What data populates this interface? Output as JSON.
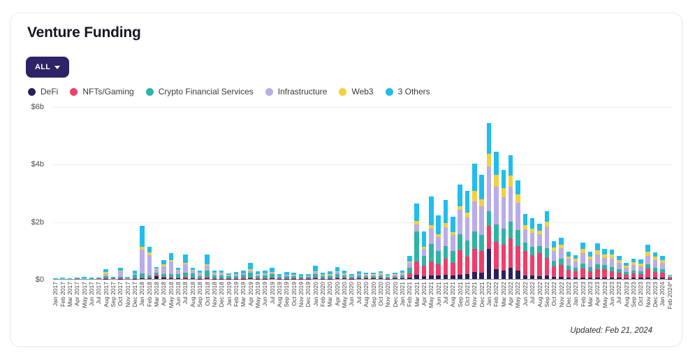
{
  "header": {
    "title": "Venture Funding"
  },
  "filter_button": {
    "label": "ALL"
  },
  "footer": {
    "updated": "Updated: Feb 21, 2024"
  },
  "chart_data": {
    "type": "bar",
    "stacked": true,
    "title": "Venture Funding",
    "unit": "USD billions",
    "ylim": [
      0,
      6
    ],
    "grid": "horizontal",
    "legend_position": "top",
    "y_ticks": [
      {
        "label": "$0",
        "value": 0
      },
      {
        "label": "$2b",
        "value": 2
      },
      {
        "label": "$4b",
        "value": 4
      },
      {
        "label": "$6b",
        "value": 6
      }
    ],
    "series": [
      {
        "name": "DeFi",
        "color": "#27215f"
      },
      {
        "name": "NFTs/Gaming",
        "color": "#ee3e6a"
      },
      {
        "name": "Crypto Financial Services",
        "color": "#2eb4a5"
      },
      {
        "name": "Infrastructure",
        "color": "#b9ace9"
      },
      {
        "name": "Web3",
        "color": "#f4d03d"
      },
      {
        "name": "3 Others",
        "color": "#1fbdf0"
      }
    ],
    "categories": [
      "Jan 2017",
      "Feb 2017",
      "Mar 2017",
      "Apr 2017",
      "May 2017",
      "Jun 2017",
      "Jul 2017",
      "Aug 2017",
      "Sep 2017",
      "Oct 2017",
      "Nov 2017",
      "Dec 2017",
      "Jan 2018",
      "Feb 2018",
      "Mar 2018",
      "Apr 2018",
      "May 2018",
      "Jun 2018",
      "Jul 2018",
      "Aug 2018",
      "Sep 2018",
      "Oct 2018",
      "Nov 2018",
      "Dec 2018",
      "Jan 2019",
      "Feb 2019",
      "Mar 2019",
      "Apr 2019",
      "May 2019",
      "Jun 2019",
      "Jul 2019",
      "Aug 2019",
      "Sep 2019",
      "Oct 2019",
      "Nov 2019",
      "Dec 2019",
      "Jan 2020",
      "Feb 2020",
      "Mar 2020",
      "Apr 2020",
      "May 2020",
      "Jun 2020",
      "Jul 2020",
      "Aug 2020",
      "Sep 2020",
      "Oct 2020",
      "Nov 2020",
      "Dec 2020",
      "Jan 2021",
      "Feb 2021",
      "Mar 2021",
      "Apr 2021",
      "May 2021",
      "Jun 2021",
      "Jul 2021",
      "Aug 2021",
      "Sep 2021",
      "Oct 2021",
      "Nov 2021",
      "Dec 2021",
      "Jan 2022",
      "Feb 2022",
      "Mar 2022",
      "Apr 2022",
      "May 2022",
      "Jun 2022",
      "Jul 2022",
      "Aug 2022",
      "Sep 2022",
      "Oct 2022",
      "Nov 2022",
      "Dec 2022",
      "Jan 2023",
      "Feb 2023",
      "Mar 2023",
      "Apr 2023",
      "May 2023",
      "Jun 2023",
      "Jul 2023",
      "Aug 2023",
      "Sep 2023",
      "Oct 2023",
      "Nov 2023",
      "Dec 2023",
      "Jan 2024",
      "Feb 2024*"
    ],
    "values_order": [
      "DeFi",
      "NFTs/Gaming",
      "Crypto Financial Services",
      "Infrastructure",
      "Web3",
      "3 Others"
    ],
    "values": [
      [
        0,
        0,
        0.01,
        0,
        0,
        0.02
      ],
      [
        0,
        0,
        0.01,
        0.01,
        0,
        0.03
      ],
      [
        0,
        0,
        0.01,
        0,
        0,
        0.02
      ],
      [
        0,
        0.01,
        0.01,
        0,
        0,
        0.02
      ],
      [
        0,
        0,
        0.01,
        0.01,
        0,
        0.06
      ],
      [
        0,
        0,
        0.03,
        0,
        0,
        0.01
      ],
      [
        0,
        0.02,
        0.01,
        0,
        0,
        0.01
      ],
      [
        0.01,
        0.02,
        0.08,
        0.06,
        0.07,
        0.09
      ],
      [
        0,
        0.02,
        0.02,
        0.01,
        0,
        0.02
      ],
      [
        0.01,
        0.01,
        0.06,
        0.19,
        0.02,
        0.09
      ],
      [
        0,
        0.01,
        0.02,
        0.01,
        0,
        0.04
      ],
      [
        0.01,
        0.01,
        0.12,
        0.05,
        0.01,
        0.1
      ],
      [
        0.02,
        0.03,
        0.15,
        0.82,
        0.11,
        0.72
      ],
      [
        0.02,
        0.03,
        0.06,
        0.72,
        0.09,
        0.2
      ],
      [
        0.1,
        0.04,
        0.09,
        0.1,
        0.03,
        0.06
      ],
      [
        0.05,
        0.03,
        0.1,
        0.27,
        0.05,
        0.15
      ],
      [
        0.02,
        0.05,
        0.1,
        0.43,
        0.05,
        0.25
      ],
      [
        0.02,
        0.03,
        0.12,
        0.13,
        0.02,
        0.08
      ],
      [
        0.03,
        0.04,
        0.15,
        0.28,
        0.05,
        0.3
      ],
      [
        0.02,
        0.03,
        0.15,
        0.1,
        0.02,
        0.08
      ],
      [
        0.01,
        0.02,
        0.08,
        0.09,
        0.02,
        0.08
      ],
      [
        0.03,
        0.04,
        0.22,
        0.18,
        0.03,
        0.35
      ],
      [
        0.01,
        0.02,
        0.09,
        0.08,
        0.02,
        0.08
      ],
      [
        0.01,
        0.02,
        0.1,
        0.07,
        0.02,
        0.08
      ],
      [
        0.01,
        0.02,
        0.06,
        0.04,
        0.01,
        0.06
      ],
      [
        0.01,
        0.02,
        0.08,
        0.05,
        0.01,
        0.08
      ],
      [
        0.01,
        0.03,
        0.1,
        0.05,
        0.01,
        0.1
      ],
      [
        0.02,
        0.03,
        0.17,
        0.08,
        0.03,
        0.22
      ],
      [
        0.01,
        0.02,
        0.08,
        0.04,
        0.01,
        0.1
      ],
      [
        0.01,
        0.02,
        0.1,
        0.05,
        0.02,
        0.1
      ],
      [
        0.02,
        0.03,
        0.11,
        0.06,
        0.02,
        0.14
      ],
      [
        0.01,
        0.01,
        0.05,
        0.03,
        0.01,
        0.05
      ],
      [
        0.01,
        0.02,
        0.07,
        0.04,
        0.01,
        0.09
      ],
      [
        0.01,
        0.02,
        0.07,
        0.03,
        0.01,
        0.08
      ],
      [
        0.01,
        0.01,
        0.05,
        0.03,
        0.01,
        0.05
      ],
      [
        0.01,
        0.01,
        0.06,
        0.03,
        0.01,
        0.06
      ],
      [
        0.02,
        0.02,
        0.14,
        0.07,
        0.02,
        0.19
      ],
      [
        0.01,
        0.02,
        0.06,
        0.04,
        0.01,
        0.08
      ],
      [
        0.01,
        0.02,
        0.08,
        0.04,
        0.01,
        0.1
      ],
      [
        0.02,
        0.03,
        0.12,
        0.07,
        0.02,
        0.16
      ],
      [
        0.02,
        0.02,
        0.09,
        0.05,
        0.02,
        0.1
      ],
      [
        0.01,
        0.01,
        0.06,
        0.03,
        0.01,
        0.06
      ],
      [
        0.02,
        0.02,
        0.08,
        0.04,
        0.02,
        0.08
      ],
      [
        0.02,
        0.02,
        0.06,
        0.04,
        0.02,
        0.06
      ],
      [
        0.02,
        0.02,
        0.06,
        0.05,
        0.02,
        0.05
      ],
      [
        0.02,
        0.03,
        0.08,
        0.06,
        0.02,
        0.07
      ],
      [
        0.01,
        0.02,
        0.05,
        0.03,
        0.01,
        0.04
      ],
      [
        0.02,
        0.02,
        0.06,
        0.05,
        0.02,
        0.05
      ],
      [
        0.02,
        0.03,
        0.08,
        0.07,
        0.02,
        0.08
      ],
      [
        0.05,
        0.15,
        0.2,
        0.15,
        0.05,
        0.2
      ],
      [
        0.15,
        0.45,
        1.05,
        0.25,
        0.12,
        0.6
      ],
      [
        0.1,
        0.35,
        0.35,
        0.25,
        0.06,
        0.55
      ],
      [
        0.11,
        0.5,
        0.6,
        0.55,
        0.1,
        1.0
      ],
      [
        0.12,
        0.4,
        0.45,
        0.49,
        0.1,
        0.65
      ],
      [
        0.15,
        0.55,
        0.45,
        0.64,
        0.15,
        0.8
      ],
      [
        0.12,
        0.45,
        0.4,
        0.55,
        0.1,
        0.55
      ],
      [
        0.15,
        0.85,
        0.55,
        0.85,
        0.12,
        0.75
      ],
      [
        0.18,
        0.6,
        0.55,
        0.8,
        0.18,
        0.75
      ],
      [
        0.25,
        0.8,
        0.6,
        1.05,
        0.35,
        0.95
      ],
      [
        0.22,
        0.75,
        0.55,
        1.0,
        0.26,
        0.85
      ],
      [
        1.05,
        0.8,
        0.5,
        1.55,
        0.45,
        1.07
      ],
      [
        0.35,
        0.95,
        0.6,
        1.3,
        0.42,
        0.8
      ],
      [
        0.3,
        0.9,
        0.55,
        1.1,
        0.3,
        0.65
      ],
      [
        0.4,
        1.0,
        0.6,
        1.2,
        0.4,
        0.7
      ],
      [
        0.3,
        0.85,
        0.55,
        0.95,
        0.28,
        0.5
      ],
      [
        0.12,
        0.85,
        0.3,
        0.45,
        0.15,
        0.4
      ],
      [
        0.12,
        0.7,
        0.3,
        0.49,
        0.15,
        0.35
      ],
      [
        0.1,
        0.8,
        0.25,
        0.4,
        0.13,
        0.25
      ],
      [
        0.12,
        0.6,
        0.35,
        0.75,
        0.18,
        0.35
      ],
      [
        0.08,
        0.35,
        0.2,
        0.35,
        0.12,
        0.22
      ],
      [
        0.08,
        0.4,
        0.22,
        0.38,
        0.12,
        0.24
      ],
      [
        0.06,
        0.25,
        0.15,
        0.25,
        0.08,
        0.16
      ],
      [
        0.05,
        0.22,
        0.13,
        0.22,
        0.08,
        0.13
      ],
      [
        0.06,
        0.3,
        0.18,
        0.35,
        0.15,
        0.22
      ],
      [
        0.05,
        0.22,
        0.15,
        0.25,
        0.1,
        0.18
      ],
      [
        0.06,
        0.28,
        0.18,
        0.32,
        0.16,
        0.24
      ],
      [
        0.06,
        0.28,
        0.15,
        0.25,
        0.12,
        0.19
      ],
      [
        0.05,
        0.22,
        0.15,
        0.28,
        0.14,
        0.19
      ],
      [
        0.04,
        0.18,
        0.12,
        0.22,
        0.1,
        0.14
      ],
      [
        0.03,
        0.12,
        0.1,
        0.14,
        0.07,
        0.1
      ],
      [
        0.04,
        0.15,
        0.11,
        0.18,
        0.1,
        0.13
      ],
      [
        0.04,
        0.14,
        0.1,
        0.17,
        0.09,
        0.13
      ],
      [
        0.06,
        0.3,
        0.15,
        0.3,
        0.15,
        0.22
      ],
      [
        0.05,
        0.2,
        0.14,
        0.26,
        0.12,
        0.16
      ],
      [
        0.04,
        0.18,
        0.12,
        0.22,
        0.1,
        0.14
      ],
      [
        0.01,
        0.04,
        0.02,
        0.04,
        0.02,
        0.02
      ]
    ]
  }
}
